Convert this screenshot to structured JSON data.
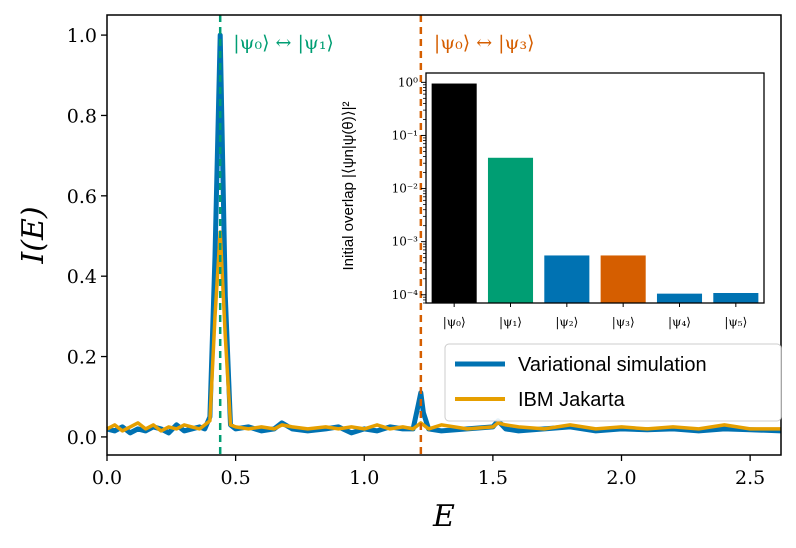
{
  "chart_data": [
    {
      "type": "line",
      "xlabel": "E",
      "ylabel": "I(E)",
      "xlim": [
        0.0,
        2.62
      ],
      "ylim": [
        -0.045,
        1.05
      ],
      "xticks": [
        "0.0",
        "0.5",
        "1.0",
        "1.5",
        "2.0",
        "2.5"
      ],
      "yticks": [
        "0.0",
        "0.2",
        "0.4",
        "0.6",
        "0.8",
        "1.0"
      ],
      "grid": false,
      "legend_position": "lower-right",
      "annotations": [
        {
          "text": "|ψ₀⟩ ↔ |ψ₁⟩",
          "x": 0.44,
          "color": "#009e73"
        },
        {
          "text": "|ψ₀⟩ ↔ |ψ₃⟩",
          "x": 1.22,
          "color": "#d55e00"
        }
      ],
      "series": [
        {
          "name": "Variational simulation",
          "color": "#0072b2",
          "x": [
            0.0,
            0.03,
            0.06,
            0.09,
            0.12,
            0.15,
            0.18,
            0.21,
            0.24,
            0.27,
            0.3,
            0.33,
            0.36,
            0.38,
            0.4,
            0.42,
            0.44,
            0.46,
            0.48,
            0.5,
            0.55,
            0.6,
            0.65,
            0.68,
            0.72,
            0.78,
            0.85,
            0.9,
            0.95,
            1.0,
            1.05,
            1.1,
            1.15,
            1.19,
            1.21,
            1.22,
            1.23,
            1.25,
            1.3,
            1.4,
            1.5,
            1.52,
            1.55,
            1.6,
            1.7,
            1.8,
            1.9,
            2.0,
            2.1,
            2.2,
            2.3,
            2.4,
            2.5,
            2.62
          ],
          "y": [
            0.02,
            0.015,
            0.025,
            0.01,
            0.02,
            0.015,
            0.025,
            0.02,
            0.01,
            0.03,
            0.015,
            0.02,
            0.025,
            0.02,
            0.05,
            0.45,
            1.0,
            0.35,
            0.03,
            0.02,
            0.025,
            0.015,
            0.02,
            0.035,
            0.02,
            0.015,
            0.02,
            0.025,
            0.01,
            0.02,
            0.015,
            0.025,
            0.02,
            0.02,
            0.08,
            0.11,
            0.06,
            0.02,
            0.015,
            0.02,
            0.025,
            0.04,
            0.02,
            0.015,
            0.02,
            0.025,
            0.015,
            0.02,
            0.018,
            0.02,
            0.015,
            0.02,
            0.018,
            0.015
          ]
        },
        {
          "name": "IBM Jakarta",
          "color": "#e69f00",
          "x": [
            0.0,
            0.03,
            0.06,
            0.09,
            0.12,
            0.15,
            0.18,
            0.21,
            0.24,
            0.27,
            0.3,
            0.33,
            0.36,
            0.38,
            0.4,
            0.42,
            0.44,
            0.46,
            0.48,
            0.5,
            0.55,
            0.6,
            0.65,
            0.68,
            0.72,
            0.78,
            0.85,
            0.9,
            0.95,
            1.0,
            1.05,
            1.1,
            1.15,
            1.19,
            1.21,
            1.22,
            1.23,
            1.25,
            1.3,
            1.4,
            1.5,
            1.52,
            1.55,
            1.6,
            1.7,
            1.8,
            1.9,
            2.0,
            2.1,
            2.2,
            2.3,
            2.4,
            2.5,
            2.62
          ],
          "y": [
            0.02,
            0.03,
            0.015,
            0.025,
            0.035,
            0.02,
            0.03,
            0.015,
            0.025,
            0.02,
            0.03,
            0.025,
            0.02,
            0.03,
            0.04,
            0.3,
            0.51,
            0.25,
            0.03,
            0.025,
            0.02,
            0.025,
            0.02,
            0.03,
            0.025,
            0.02,
            0.025,
            0.02,
            0.025,
            0.02,
            0.03,
            0.02,
            0.025,
            0.02,
            0.03,
            0.035,
            0.03,
            0.02,
            0.03,
            0.02,
            0.025,
            0.035,
            0.03,
            0.025,
            0.02,
            0.03,
            0.02,
            0.025,
            0.02,
            0.025,
            0.02,
            0.03,
            0.02,
            0.02
          ]
        }
      ]
    },
    {
      "type": "bar",
      "ylabel": "Initial overlap |⟨ψn|ψ(θ)⟩|²",
      "yscale": "log",
      "ylim": [
        7e-05,
        1.5
      ],
      "yticks": [
        "10⁰",
        "10⁻¹",
        "10⁻²",
        "10⁻³",
        "10⁻⁴"
      ],
      "categories": [
        "|ψ₀⟩",
        "|ψ₁⟩",
        "|ψ₂⟩",
        "|ψ₃⟩",
        "|ψ₄⟩",
        "|ψ₅⟩"
      ],
      "values": [
        0.95,
        0.038,
        0.00055,
        0.00055,
        0.000105,
        0.000108
      ],
      "colors": [
        "#000000",
        "#009e73",
        "#0072b2",
        "#d55e00",
        "#0072b2",
        "#0072b2"
      ]
    }
  ]
}
